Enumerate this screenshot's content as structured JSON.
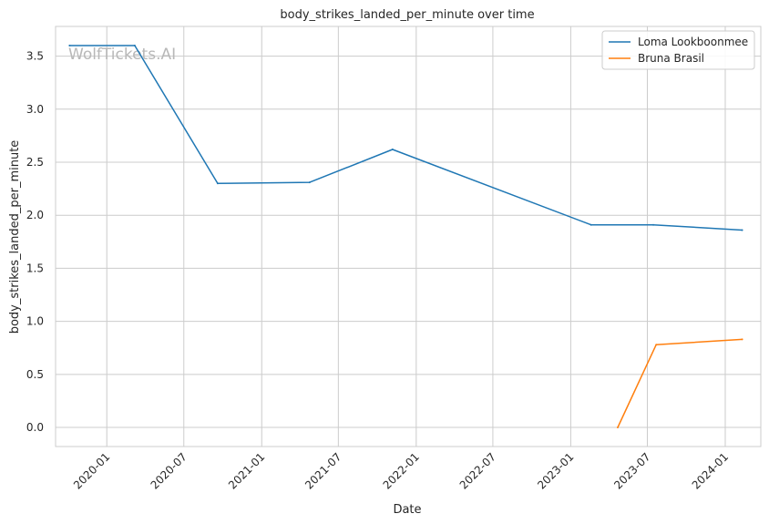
{
  "chart_data": {
    "type": "line",
    "title": "body_strikes_landed_per_minute over time",
    "xlabel": "Date",
    "ylabel": "body_strikes_landed_per_minute",
    "watermark": "WolfTickets.AI",
    "x_ticks": [
      "2020-01",
      "2020-07",
      "2021-01",
      "2021-07",
      "2022-01",
      "2022-07",
      "2023-01",
      "2023-07",
      "2024-01"
    ],
    "y_ticks": [
      "0.0",
      "0.5",
      "1.0",
      "1.5",
      "2.0",
      "2.5",
      "3.0",
      "3.5"
    ],
    "xlim": [
      "2019-09-02",
      "2024-03-25"
    ],
    "ylim": [
      -0.18,
      3.78
    ],
    "grid": true,
    "legend_position": "top-right",
    "series": [
      {
        "name": "Loma Lookboonmee",
        "color": "#1f77b4",
        "points": [
          {
            "x": "2019-10-05",
            "y": 3.6
          },
          {
            "x": "2020-03-07",
            "y": 3.6
          },
          {
            "x": "2020-09-19",
            "y": 2.3
          },
          {
            "x": "2021-04-24",
            "y": 2.31
          },
          {
            "x": "2021-11-06",
            "y": 2.62
          },
          {
            "x": "2023-02-18",
            "y": 1.91
          },
          {
            "x": "2023-07-15",
            "y": 1.91
          },
          {
            "x": "2024-02-10",
            "y": 1.86
          }
        ]
      },
      {
        "name": "Bruna Brasil",
        "color": "#ff7f0e",
        "points": [
          {
            "x": "2023-04-22",
            "y": 0.0
          },
          {
            "x": "2023-07-22",
            "y": 0.78
          },
          {
            "x": "2024-02-10",
            "y": 0.83
          }
        ]
      }
    ]
  }
}
